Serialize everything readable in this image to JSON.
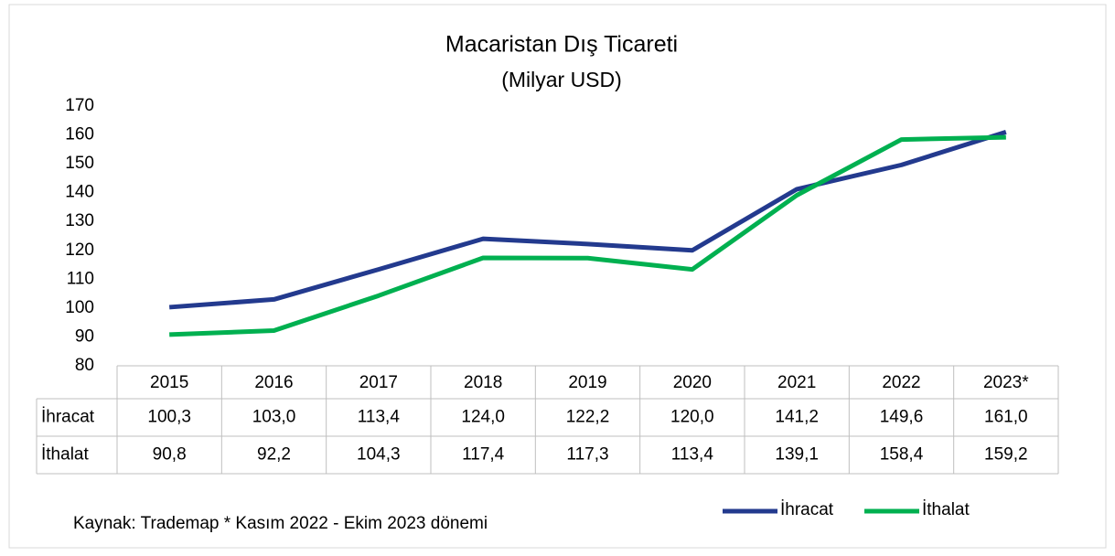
{
  "chart_data": {
    "type": "line",
    "title": "Macaristan Dış Ticareti",
    "subtitle": "(Milyar USD)",
    "categories": [
      "2015",
      "2016",
      "2017",
      "2018",
      "2019",
      "2020",
      "2021",
      "2022",
      "2023*"
    ],
    "series": [
      {
        "name": "İhracat",
        "color": "#233a8e",
        "values": [
          100.3,
          103.0,
          113.4,
          124.0,
          122.2,
          120.0,
          141.2,
          149.6,
          161.0
        ],
        "value_labels": [
          "100,3",
          "103,0",
          "113,4",
          "124,0",
          "122,2",
          "120,0",
          "141,2",
          "149,6",
          "161,0"
        ]
      },
      {
        "name": "İthalat",
        "color": "#00b050",
        "values": [
          90.8,
          92.2,
          104.3,
          117.4,
          117.3,
          113.4,
          139.1,
          158.4,
          159.2
        ],
        "value_labels": [
          "90,8",
          "92,2",
          "104,3",
          "117,4",
          "117,3",
          "113,4",
          "139,1",
          "158,4",
          "159,2"
        ]
      }
    ],
    "ylim": [
      80,
      170
    ],
    "yticks": [
      80,
      90,
      100,
      110,
      120,
      130,
      140,
      150,
      160,
      170
    ],
    "grid": false,
    "legend": "bottom-right",
    "note": "Kaynak: Trademap * Kasım 2022 - Ekim 2023 dönemi"
  }
}
